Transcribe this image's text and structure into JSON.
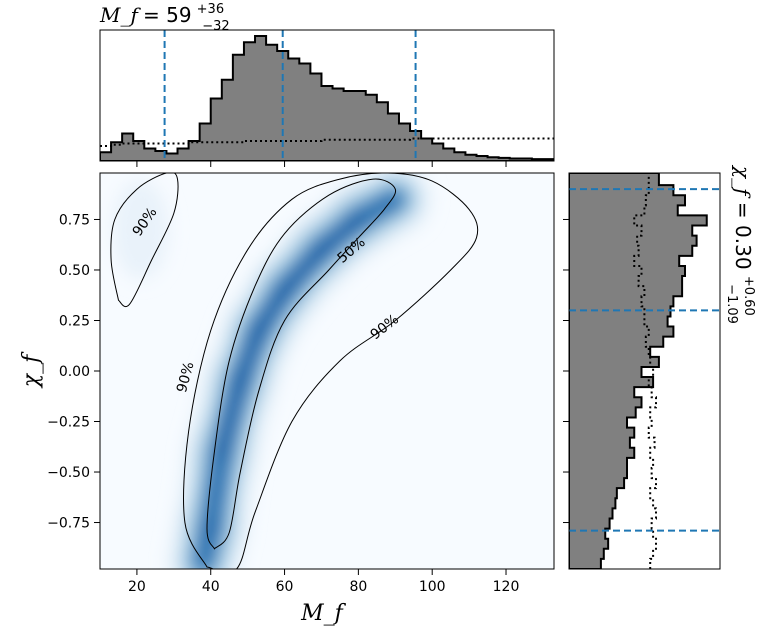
{
  "chart_data": [
    {
      "type": "heatmap",
      "panel": "joint",
      "xlabel": "M_f",
      "ylabel": "χ_f",
      "xlim": [
        10,
        133
      ],
      "ylim": [
        -0.98,
        0.98
      ],
      "xticks": [
        20,
        40,
        60,
        80,
        100,
        120
      ],
      "yticks": [
        -0.75,
        -0.5,
        -0.25,
        0.0,
        0.25,
        0.5,
        0.75
      ],
      "ytick_labels": [
        "−0.75",
        "−0.50",
        "−0.25",
        "0.00",
        "0.25",
        "0.50",
        "0.75"
      ],
      "colormap": "Blues",
      "ridge": [
        [
          38,
          -0.95
        ],
        [
          40,
          -0.78
        ],
        [
          43,
          -0.4
        ],
        [
          48,
          -0.05
        ],
        [
          53,
          0.2
        ],
        [
          60,
          0.4
        ],
        [
          70,
          0.6
        ],
        [
          80,
          0.75
        ],
        [
          90,
          0.85
        ]
      ],
      "contours": [
        {
          "label": "50%",
          "points": [
            [
              41,
              -0.88
            ],
            [
              45,
              -0.8
            ],
            [
              48,
              -0.5
            ],
            [
              53,
              -0.1
            ],
            [
              60,
              0.25
            ],
            [
              72,
              0.5
            ],
            [
              80,
              0.66
            ],
            [
              87,
              0.8
            ],
            [
              90,
              0.9
            ],
            [
              84,
              0.95
            ],
            [
              72,
              0.87
            ],
            [
              60,
              0.68
            ],
            [
              52,
              0.42
            ],
            [
              45,
              0.05
            ],
            [
              41,
              -0.4
            ],
            [
              39,
              -0.78
            ],
            [
              41,
              -0.88
            ]
          ]
        },
        {
          "label": "90%",
          "points": [
            [
              39,
              -0.97
            ],
            [
              47,
              -0.98
            ],
            [
              52,
              -0.7
            ],
            [
              62,
              -0.25
            ],
            [
              75,
              0.05
            ],
            [
              90,
              0.25
            ],
            [
              105,
              0.5
            ],
            [
              112,
              0.66
            ],
            [
              110,
              0.8
            ],
            [
              100,
              0.94
            ],
            [
              88,
              0.98
            ],
            [
              75,
              0.95
            ],
            [
              62,
              0.85
            ],
            [
              50,
              0.6
            ],
            [
              40,
              0.2
            ],
            [
              34,
              -0.3
            ],
            [
              33,
              -0.75
            ],
            [
              39,
              -0.97
            ]
          ]
        },
        {
          "label": "90%",
          "points": [
            [
              15,
              0.35
            ],
            [
              18,
              0.33
            ],
            [
              24,
              0.55
            ],
            [
              30,
              0.78
            ],
            [
              31,
              0.95
            ],
            [
              28,
              0.98
            ],
            [
              20,
              0.9
            ],
            [
              14,
              0.75
            ],
            [
              13,
              0.55
            ],
            [
              15,
              0.35
            ]
          ]
        }
      ],
      "contour_labels": [
        {
          "text": "90%",
          "x": 22,
          "y": 0.74,
          "angle": -55
        },
        {
          "text": "50%",
          "x": 78,
          "y": 0.6,
          "angle": -40
        },
        {
          "text": "90%",
          "x": 33,
          "y": -0.03,
          "angle": -75
        },
        {
          "text": "90%",
          "x": 87,
          "y": 0.22,
          "angle": -38
        }
      ]
    },
    {
      "type": "histogram",
      "panel": "top-marginal",
      "title": "M_f = 59 +36 −32",
      "title_parts": {
        "symbol": "M_f",
        "median": "59",
        "plus": "+36",
        "minus": "−32"
      },
      "bin_edges": [
        10,
        13,
        16,
        19,
        22,
        25,
        28,
        31,
        34,
        37,
        40,
        43,
        46,
        49,
        52,
        55,
        58,
        61,
        64,
        67,
        70,
        73,
        76,
        79,
        82,
        85,
        88,
        91,
        94,
        97,
        100,
        103,
        106,
        109,
        112,
        115,
        118,
        121,
        124,
        127,
        130,
        133
      ],
      "posterior": [
        0.07,
        0.15,
        0.22,
        0.16,
        0.1,
        0.08,
        0.06,
        0.1,
        0.16,
        0.3,
        0.5,
        0.65,
        0.85,
        0.95,
        1.0,
        0.93,
        0.88,
        0.82,
        0.78,
        0.7,
        0.6,
        0.58,
        0.56,
        0.56,
        0.53,
        0.47,
        0.38,
        0.3,
        0.24,
        0.18,
        0.14,
        0.1,
        0.07,
        0.05,
        0.04,
        0.03,
        0.025,
        0.02,
        0.02,
        0.015,
        0.015
      ],
      "prior": [
        0.12,
        0.13,
        0.14,
        0.14,
        0.14,
        0.14,
        0.14,
        0.14,
        0.15,
        0.15,
        0.15,
        0.15,
        0.15,
        0.16,
        0.16,
        0.16,
        0.16,
        0.16,
        0.16,
        0.16,
        0.17,
        0.17,
        0.17,
        0.17,
        0.17,
        0.17,
        0.17,
        0.17,
        0.18,
        0.18,
        0.18,
        0.18,
        0.18,
        0.18,
        0.18,
        0.18,
        0.18,
        0.18,
        0.18,
        0.18,
        0.18
      ],
      "quantile_lines": [
        27.5,
        59.5,
        95.5
      ]
    },
    {
      "type": "histogram",
      "panel": "right-marginal",
      "orientation": "horizontal",
      "title": "χ_f = 0.30 +0.60 −1.09",
      "title_parts": {
        "symbol": "χ_f",
        "median": "0.30",
        "plus": "+0.60",
        "minus": "−1.09"
      },
      "bin_edges": [
        -0.98,
        -0.93,
        -0.88,
        -0.83,
        -0.78,
        -0.73,
        -0.68,
        -0.63,
        -0.58,
        -0.53,
        -0.48,
        -0.43,
        -0.38,
        -0.33,
        -0.28,
        -0.23,
        -0.18,
        -0.13,
        -0.08,
        -0.03,
        0.02,
        0.07,
        0.12,
        0.17,
        0.22,
        0.27,
        0.32,
        0.37,
        0.42,
        0.47,
        0.52,
        0.57,
        0.62,
        0.67,
        0.72,
        0.77,
        0.82,
        0.87,
        0.92,
        0.98
      ],
      "posterior": [
        0.22,
        0.24,
        0.27,
        0.25,
        0.28,
        0.3,
        0.32,
        0.33,
        0.38,
        0.4,
        0.4,
        0.45,
        0.42,
        0.45,
        0.4,
        0.46,
        0.5,
        0.45,
        0.58,
        0.5,
        0.62,
        0.56,
        0.65,
        0.72,
        0.68,
        0.7,
        0.72,
        0.78,
        0.78,
        0.8,
        0.76,
        0.85,
        0.88,
        0.85,
        0.95,
        0.75,
        0.8,
        0.72,
        0.62
      ],
      "prior": [
        0.56,
        0.58,
        0.6,
        0.58,
        0.57,
        0.6,
        0.58,
        0.56,
        0.6,
        0.57,
        0.58,
        0.56,
        0.59,
        0.55,
        0.57,
        0.56,
        0.6,
        0.57,
        0.55,
        0.58,
        0.56,
        0.55,
        0.53,
        0.55,
        0.52,
        0.52,
        0.5,
        0.52,
        0.48,
        0.5,
        0.45,
        0.48,
        0.47,
        0.5,
        0.45,
        0.52,
        0.53,
        0.55,
        0.55
      ],
      "quantile_lines": [
        -0.79,
        0.3,
        0.9
      ]
    }
  ],
  "colors": {
    "posterior_fill": "#808080",
    "quantile_line": "#1f77b4",
    "contour": "#000000",
    "heat_low": "#f7fbff",
    "heat_high": "#08306b"
  }
}
